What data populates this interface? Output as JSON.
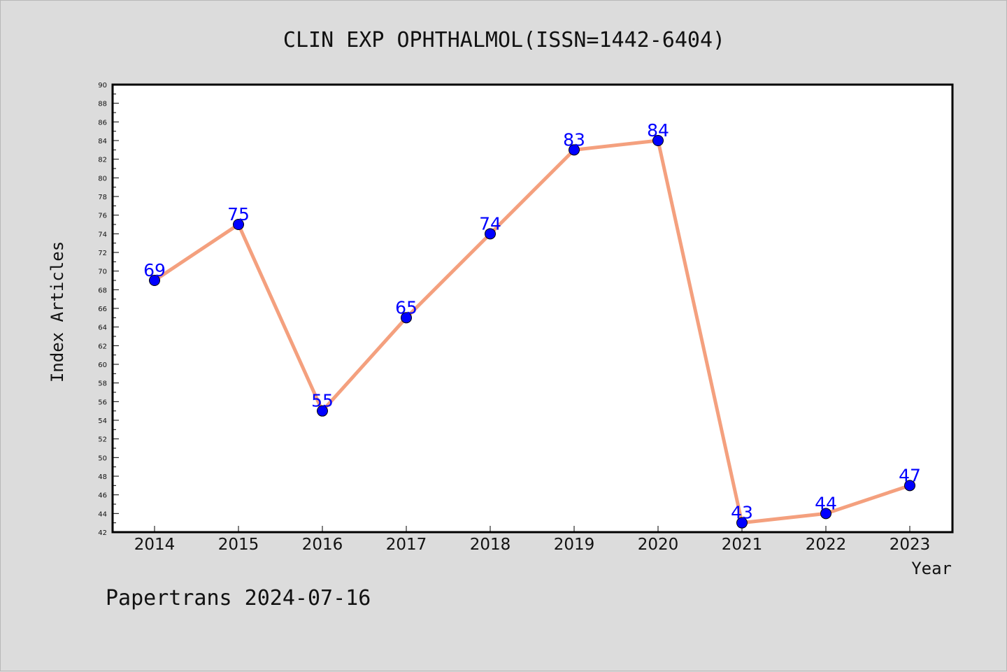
{
  "chart_data": {
    "type": "line",
    "title": "CLIN EXP OPHTHALMOL(ISSN=1442-6404)",
    "xlabel": "Year",
    "ylabel": "Index Articles",
    "categories": [
      "2014",
      "2015",
      "2016",
      "2017",
      "2018",
      "2019",
      "2020",
      "2021",
      "2022",
      "2023"
    ],
    "series": [
      {
        "values": [
          69,
          75,
          55,
          65,
          74,
          83,
          84,
          43,
          44,
          47
        ]
      }
    ],
    "ylim": [
      42,
      90
    ],
    "yticks": [
      42,
      44,
      46,
      48,
      50,
      52,
      54,
      56,
      58,
      60,
      62,
      64,
      66,
      68,
      70,
      72,
      74,
      76,
      78,
      80,
      82,
      84,
      86,
      88,
      90
    ],
    "grid": false,
    "legend": "none",
    "line_color": "#f4a07e",
    "marker_color": "#0000ff",
    "label_color": "#0000ff",
    "background": "#dcdcdc",
    "plot_background": "#ffffff"
  },
  "footer": "Papertrans 2024-07-16"
}
